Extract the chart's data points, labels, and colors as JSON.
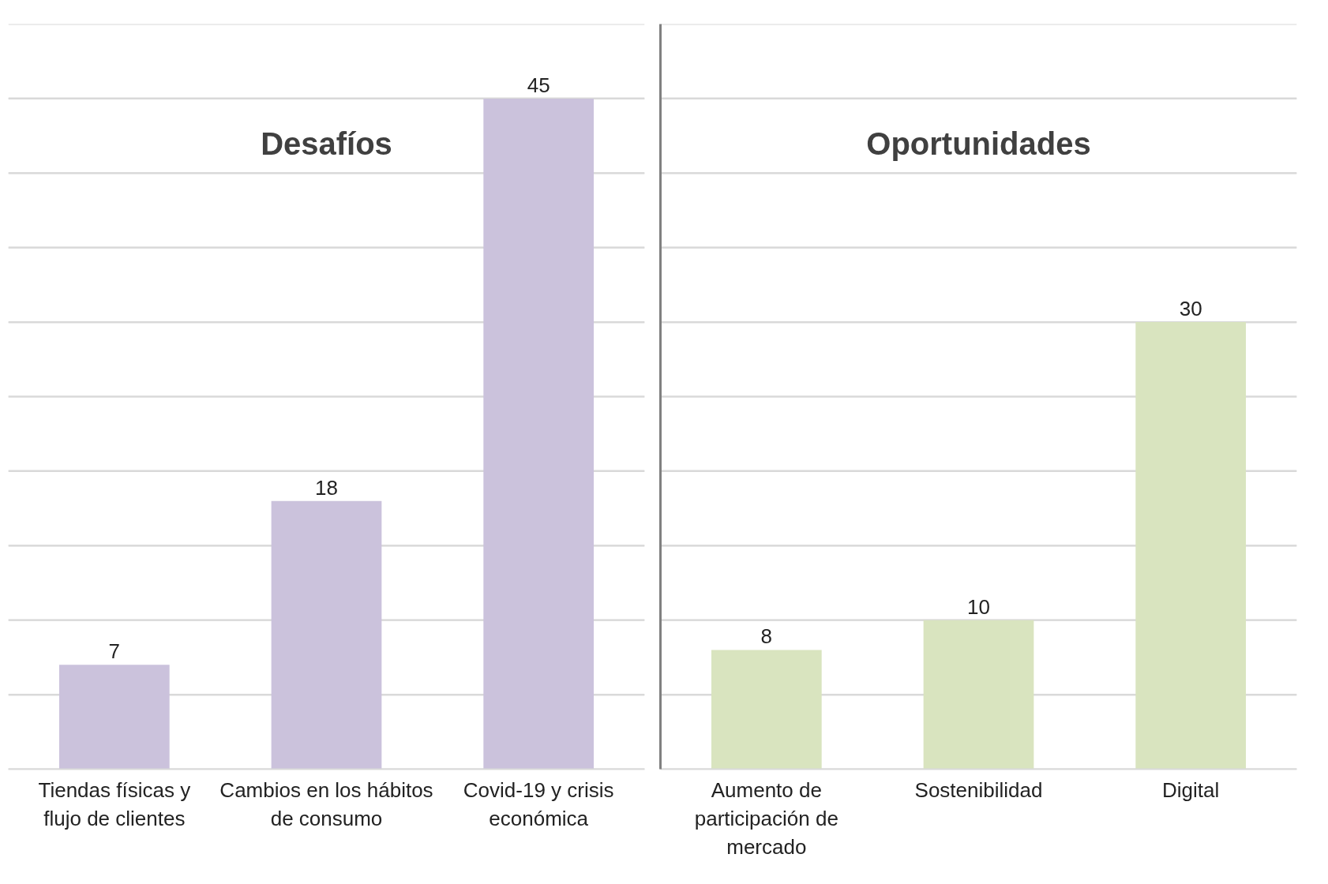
{
  "chart_data": [
    {
      "type": "bar",
      "title": "Desafíos",
      "categories": [
        "Tiendas físicas y flujo de clientes",
        "Cambios en los hábitos de consumo",
        "Covid-19 y crisis económica"
      ],
      "values": [
        7,
        18,
        45
      ],
      "color": "#cbc2dc",
      "ylim": [
        0,
        50
      ],
      "yticks": [
        {
          "value": 0,
          "label": null
        },
        {
          "value": 5,
          "label": null
        },
        {
          "value": 10,
          "label": null
        },
        {
          "value": 15,
          "label": null
        },
        {
          "value": 20,
          "label": null
        },
        {
          "value": 25,
          "label": null
        },
        {
          "value": 30,
          "label": null
        },
        {
          "value": 35,
          "label": null
        },
        {
          "value": 40,
          "label": null
        },
        {
          "value": 45,
          "label": null
        },
        {
          "value": 50,
          "label": null
        }
      ],
      "grid": "y",
      "data_labels": true,
      "tick_labels": "x"
    },
    {
      "type": "bar",
      "title": "Oportunidades",
      "categories": [
        "Aumento de participación de mercado",
        "Sostenibilidad",
        "Digital"
      ],
      "values": [
        8,
        10,
        30
      ],
      "color": "#d9e4bf",
      "ylim": [
        0,
        50
      ],
      "yticks": [
        {
          "value": 0,
          "label": null
        },
        {
          "value": 5,
          "label": null
        },
        {
          "value": 10,
          "label": null
        },
        {
          "value": 15,
          "label": null
        },
        {
          "value": 20,
          "label": null
        },
        {
          "value": 25,
          "label": null
        },
        {
          "value": 30,
          "label": null
        },
        {
          "value": 35,
          "label": null
        },
        {
          "value": 40,
          "label": null
        },
        {
          "value": 45,
          "label": null
        },
        {
          "value": 50,
          "label": null
        }
      ],
      "grid": "y",
      "data_labels": true,
      "tick_labels": "x"
    }
  ]
}
